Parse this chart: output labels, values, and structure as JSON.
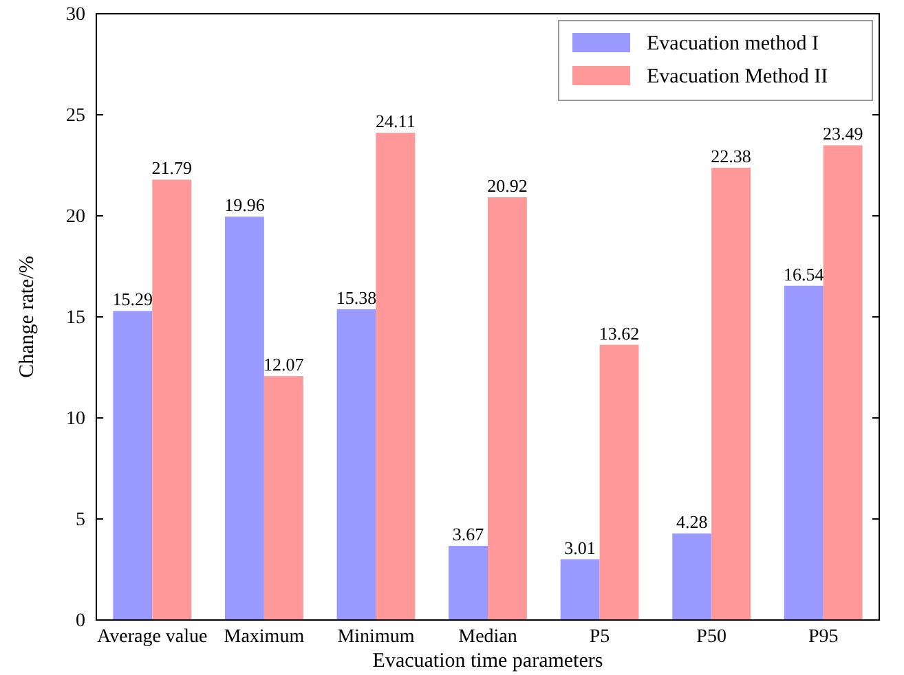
{
  "chart_data": {
    "type": "bar",
    "xlabel": "Evacuation time parameters",
    "ylabel": "Change rate/%",
    "categories": [
      "Average value",
      "Maximum",
      "Minimum",
      "Median",
      "P5",
      "P50",
      "P95"
    ],
    "series": [
      {
        "name": "Evacuation method I",
        "color": "#9999ff",
        "values": [
          15.29,
          19.96,
          15.38,
          3.67,
          3.01,
          4.28,
          16.54
        ]
      },
      {
        "name": "Evacuation Method II",
        "color": "#ff9999",
        "values": [
          21.79,
          12.07,
          24.11,
          20.92,
          13.62,
          22.38,
          23.49
        ]
      }
    ],
    "ylim": [
      0,
      30
    ],
    "yticks": [
      0,
      5,
      10,
      15,
      20,
      25,
      30
    ],
    "data_labels": true,
    "legend": "top right",
    "grid": false
  }
}
